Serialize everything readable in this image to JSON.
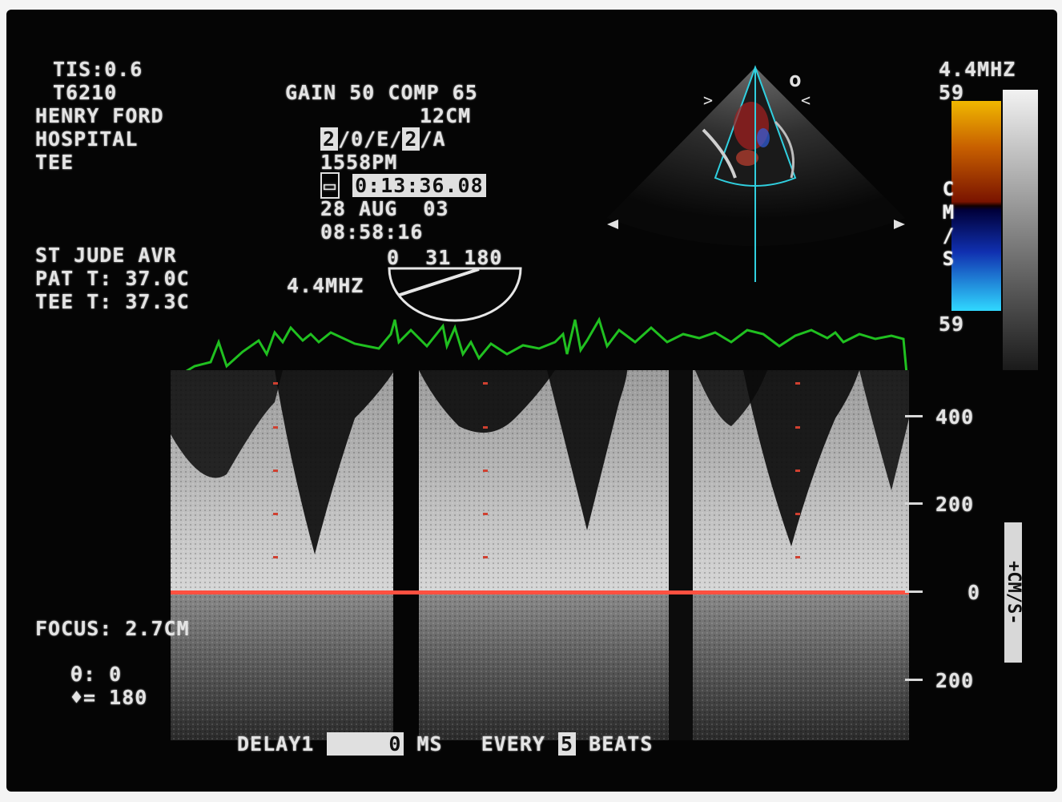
{
  "header_left": {
    "tis": "TIS:0.6",
    "probe": "T6210",
    "institution_1": "HENRY FORD",
    "institution_2": "HOSPITAL",
    "mode": "TEE"
  },
  "header_center": {
    "gain_comp": "GAIN 50 COMP 65",
    "depth": "12CM",
    "preset_a": "2",
    "preset_b": "/0/E/",
    "preset_c": "2",
    "preset_d": "/A",
    "time_pm": "1558PM",
    "timer": "0:13:36.08",
    "date": "28 AUG  03",
    "clock": "08:58:16"
  },
  "patient": {
    "valve": "ST JUDE AVR",
    "pat_temp": "PAT T: 37.0C",
    "tee_temp": "TEE T: 37.3C"
  },
  "angle": {
    "labels": "0  31 180",
    "freq": "4.4MHZ",
    "angle_deg": 31
  },
  "color_scale": {
    "freq": "4.4MHZ",
    "top": "59",
    "bottom": "59",
    "unit": "CM/S"
  },
  "velocity_scale": {
    "labels": [
      "400",
      "200",
      "0",
      "200"
    ],
    "unit": "+CM/S-"
  },
  "bottom_left": {
    "focus": "FOCUS: 2.7CM",
    "theta": "θ: 0",
    "phi": "♦= 180"
  },
  "footer": {
    "delay_label": "DELAY1",
    "delay_value": "0",
    "delay_unit": "MS",
    "every_label": "EVERY",
    "every_value": "5",
    "beats_label": "BEATS"
  },
  "colors": {
    "baseline": "#ff5040",
    "ecg": "#20c020",
    "sector_outline": "#30d0e0"
  }
}
